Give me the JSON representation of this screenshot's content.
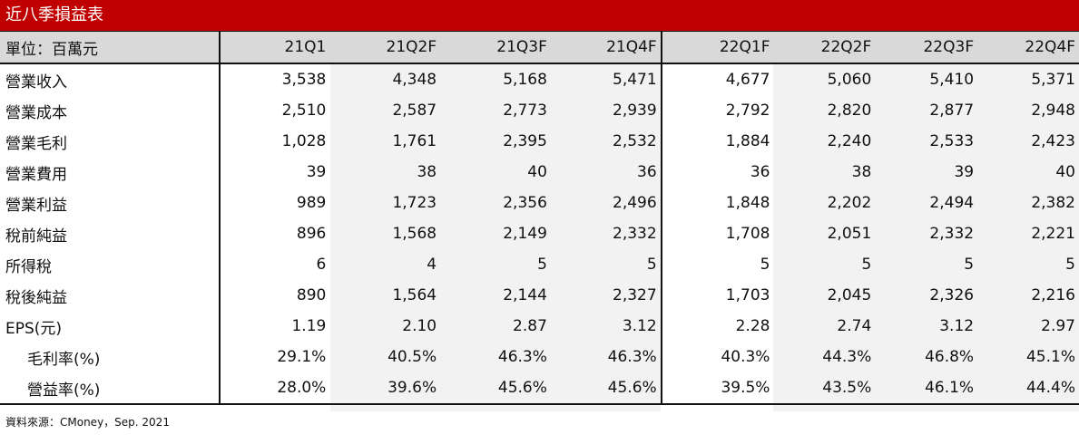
{
  "title": "近八季損益表",
  "header": {
    "unit_label": "單位：百萬元",
    "columns": [
      "21Q1",
      "21Q2F",
      "21Q3F",
      "21Q4F",
      "22Q1F",
      "22Q2F",
      "22Q3F",
      "22Q4F"
    ]
  },
  "rows": [
    {
      "label": "營業收入",
      "indent": false,
      "values": [
        "3,538",
        "4,348",
        "5,168",
        "5,471",
        "4,677",
        "5,060",
        "5,410",
        "5,371"
      ]
    },
    {
      "label": "營業成本",
      "indent": false,
      "values": [
        "2,510",
        "2,587",
        "2,773",
        "2,939",
        "2,792",
        "2,820",
        "2,877",
        "2,948"
      ]
    },
    {
      "label": "營業毛利",
      "indent": false,
      "values": [
        "1,028",
        "1,761",
        "2,395",
        "2,532",
        "1,884",
        "2,240",
        "2,533",
        "2,423"
      ]
    },
    {
      "label": "營業費用",
      "indent": false,
      "values": [
        "39",
        "38",
        "40",
        "36",
        "36",
        "38",
        "39",
        "40"
      ]
    },
    {
      "label": "營業利益",
      "indent": false,
      "values": [
        "989",
        "1,723",
        "2,356",
        "2,496",
        "1,848",
        "2,202",
        "2,494",
        "2,382"
      ]
    },
    {
      "label": "稅前純益",
      "indent": false,
      "values": [
        "896",
        "1,568",
        "2,149",
        "2,332",
        "1,708",
        "2,051",
        "2,332",
        "2,221"
      ]
    },
    {
      "label": "所得稅",
      "indent": false,
      "values": [
        "6",
        "4",
        "5",
        "5",
        "5",
        "5",
        "5",
        "5"
      ]
    },
    {
      "label": "稅後純益",
      "indent": false,
      "values": [
        "890",
        "1,564",
        "2,144",
        "2,327",
        "1,703",
        "2,045",
        "2,326",
        "2,216"
      ]
    },
    {
      "label": "EPS(元)",
      "indent": false,
      "values": [
        "1.19",
        "2.10",
        "2.87",
        "3.12",
        "2.28",
        "2.74",
        "3.12",
        "2.97"
      ]
    },
    {
      "label": "毛利率(%)",
      "indent": true,
      "values": [
        "29.1%",
        "40.5%",
        "46.3%",
        "46.3%",
        "40.3%",
        "44.3%",
        "46.8%",
        "45.1%"
      ]
    },
    {
      "label": "營益率(%)",
      "indent": true,
      "values": [
        "28.0%",
        "39.6%",
        "45.6%",
        "45.6%",
        "39.5%",
        "43.5%",
        "46.1%",
        "44.4%"
      ]
    }
  ],
  "source_note": "資料來源：CMoney，Sep. 2021"
}
